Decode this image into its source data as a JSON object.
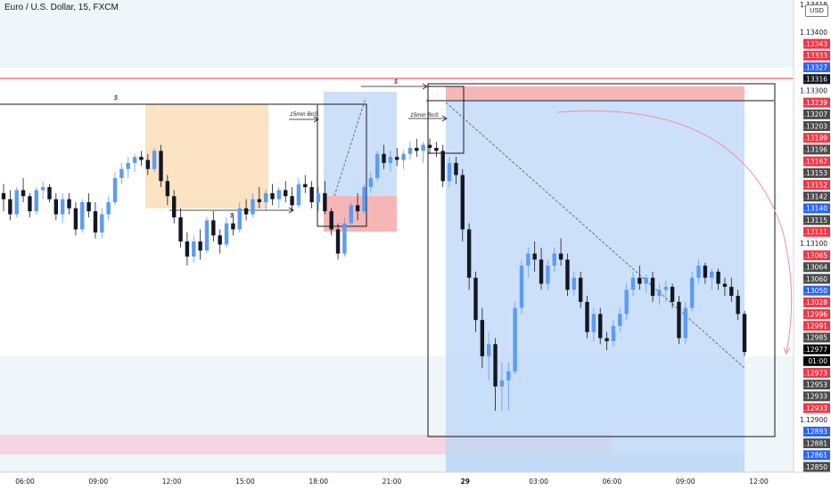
{
  "header": {
    "title": "Euro / U.S. Dollar, 15, FXCM",
    "currency_button": "USD",
    "top_corner_price": "1.13418"
  },
  "price_axis": {
    "labels": [
      {
        "text": "1.13400",
        "bg": "none"
      },
      {
        "text": "1.13343",
        "bg": "#f23645"
      },
      {
        "text": "1.13333",
        "bg": "#f23645"
      },
      {
        "text": "1.13327",
        "bg": "#2962ff"
      },
      {
        "text": "1.13316",
        "bg": "#131722"
      },
      {
        "text": "1.13300",
        "bg": "none"
      },
      {
        "text": "1.13239",
        "bg": "#f23645"
      },
      {
        "text": "1.13207",
        "bg": "#4a4a4a"
      },
      {
        "text": "1.13203",
        "bg": "#4a4a4a"
      },
      {
        "text": "1.13199",
        "bg": "#f23645"
      },
      {
        "text": "1.13196",
        "bg": "#4a4a4a"
      },
      {
        "text": "1.13167",
        "bg": "#f23645"
      },
      {
        "text": "1.13153",
        "bg": "#4a4a4a"
      },
      {
        "text": "1.13152",
        "bg": "#f23645"
      },
      {
        "text": "1.13142",
        "bg": "#4a4a4a"
      },
      {
        "text": "1.13140",
        "bg": "#2962ff"
      },
      {
        "text": "1.13115",
        "bg": "#4a4a4a"
      },
      {
        "text": "1.13111",
        "bg": "#f23645"
      },
      {
        "text": "1.13100",
        "bg": "none"
      },
      {
        "text": "1.13065",
        "bg": "#f23645"
      },
      {
        "text": "1.13064",
        "bg": "#4a4a4a"
      },
      {
        "text": "1.13060",
        "bg": "#4a4a4a"
      },
      {
        "text": "1.13050",
        "bg": "#2962ff"
      },
      {
        "text": "1.13028",
        "bg": "#f23645"
      },
      {
        "text": "1.12996",
        "bg": "#f23645"
      },
      {
        "text": "1.12991",
        "bg": "#f23645"
      },
      {
        "text": "1.12985",
        "bg": "#4a4a4a"
      },
      {
        "text": "1.12977",
        "bg": "#000000"
      },
      {
        "text": "01:00",
        "bg": "#000000"
      },
      {
        "text": "1.12973",
        "bg": "#f23645"
      },
      {
        "text": "1.12953",
        "bg": "#4a4a4a"
      },
      {
        "text": "1.12933",
        "bg": "#4a4a4a"
      },
      {
        "text": "1.12933",
        "bg": "#f23645"
      },
      {
        "text": "1.12900",
        "bg": "none"
      },
      {
        "text": "1.12893",
        "bg": "#2962ff"
      },
      {
        "text": "1.12881",
        "bg": "#4a4a4a"
      },
      {
        "text": "1.12861",
        "bg": "#2962ff"
      },
      {
        "text": "1.12850",
        "bg": "#4a4a4a"
      }
    ]
  },
  "time_axis": {
    "labels": [
      "06:00",
      "09:00",
      "12:00",
      "15:00",
      "18:00",
      "21:00",
      "29",
      "03:00",
      "06:00",
      "09:00",
      "12:00"
    ]
  },
  "annotations": {
    "bos_left": "15min BoS",
    "bos_right": "15min BoS",
    "dollar": "$"
  },
  "colors": {
    "up": "#5b9cf6",
    "down": "#131722",
    "red_line": "#f23645",
    "orange_zone": "#fbe3c3",
    "blue_zone": "#bcd6f7",
    "red_zone": "#f7b6b6",
    "pink_zone": "#f6d5e0"
  },
  "chart_data": {
    "type": "candlestick",
    "symbol": "Euro / U.S. Dollar",
    "interval": "15",
    "x_ticks": [
      "06:00",
      "09:00",
      "12:00",
      "15:00",
      "18:00",
      "21:00",
      "29",
      "03:00",
      "06:00",
      "09:00",
      "12:00"
    ],
    "ylim": [
      1.1284,
      1.1343
    ],
    "candles": [
      [
        1.1324,
        1.13255,
        1.1321,
        1.1323
      ],
      [
        1.1323,
        1.13245,
        1.13195,
        1.13205
      ],
      [
        1.13205,
        1.1325,
        1.132,
        1.13245
      ],
      [
        1.13245,
        1.13265,
        1.13225,
        1.13235
      ],
      [
        1.13235,
        1.1324,
        1.132,
        1.1321
      ],
      [
        1.1321,
        1.1325,
        1.13205,
        1.13245
      ],
      [
        1.13245,
        1.1326,
        1.1323,
        1.1325
      ],
      [
        1.1325,
        1.13255,
        1.13225,
        1.1323
      ],
      [
        1.1323,
        1.1324,
        1.13195,
        1.13205
      ],
      [
        1.13205,
        1.1324,
        1.1319,
        1.1323
      ],
      [
        1.1323,
        1.1324,
        1.13205,
        1.13215
      ],
      [
        1.13215,
        1.13225,
        1.1317,
        1.1318
      ],
      [
        1.1318,
        1.1323,
        1.13175,
        1.13225
      ],
      [
        1.13225,
        1.1324,
        1.132,
        1.1321
      ],
      [
        1.1321,
        1.13225,
        1.13165,
        1.13175
      ],
      [
        1.13175,
        1.13215,
        1.13165,
        1.13205
      ],
      [
        1.13205,
        1.13235,
        1.13195,
        1.13225
      ],
      [
        1.13225,
        1.13275,
        1.1322,
        1.13265
      ],
      [
        1.13265,
        1.1329,
        1.13255,
        1.1328
      ],
      [
        1.1328,
        1.133,
        1.13265,
        1.1329
      ],
      [
        1.1329,
        1.13305,
        1.13275,
        1.133
      ],
      [
        1.133,
        1.1331,
        1.13285,
        1.13295
      ],
      [
        1.13295,
        1.13305,
        1.1327,
        1.1328
      ],
      [
        1.1328,
        1.13315,
        1.13275,
        1.1331
      ],
      [
        1.1331,
        1.1332,
        1.1325,
        1.1326
      ],
      [
        1.1326,
        1.1327,
        1.1322,
        1.13235
      ],
      [
        1.13235,
        1.13245,
        1.1319,
        1.132
      ],
      [
        1.132,
        1.13215,
        1.1315,
        1.1316
      ],
      [
        1.1316,
        1.13175,
        1.1312,
        1.13135
      ],
      [
        1.13135,
        1.1317,
        1.13125,
        1.1316
      ],
      [
        1.1316,
        1.1318,
        1.1313,
        1.13145
      ],
      [
        1.13145,
        1.132,
        1.1314,
        1.13195
      ],
      [
        1.13195,
        1.1321,
        1.1316,
        1.1317
      ],
      [
        1.1317,
        1.1318,
        1.1314,
        1.13155
      ],
      [
        1.13155,
        1.132,
        1.1315,
        1.1319
      ],
      [
        1.1319,
        1.13205,
        1.1317,
        1.1318
      ],
      [
        1.1318,
        1.13225,
        1.13175,
        1.13215
      ],
      [
        1.13215,
        1.1323,
        1.13195,
        1.13205
      ],
      [
        1.13205,
        1.1324,
        1.132,
        1.1323
      ],
      [
        1.1323,
        1.1325,
        1.13215,
        1.13225
      ],
      [
        1.13225,
        1.13245,
        1.1321,
        1.1324
      ],
      [
        1.1324,
        1.13255,
        1.1322,
        1.1323
      ],
      [
        1.1323,
        1.1325,
        1.13215,
        1.13245
      ],
      [
        1.13245,
        1.1326,
        1.13225,
        1.13235
      ],
      [
        1.13235,
        1.1325,
        1.1321,
        1.1322
      ],
      [
        1.1322,
        1.13265,
        1.13215,
        1.13255
      ],
      [
        1.13255,
        1.1327,
        1.1324,
        1.1325
      ],
      [
        1.1325,
        1.1326,
        1.13215,
        1.13225
      ],
      [
        1.13225,
        1.1325,
        1.1321,
        1.1324
      ],
      [
        1.1324,
        1.1326,
        1.13205,
        1.1321
      ],
      [
        1.1321,
        1.13215,
        1.1317,
        1.1318
      ],
      [
        1.1318,
        1.1319,
        1.1313,
        1.1314
      ],
      [
        1.1314,
        1.132,
        1.13135,
        1.1319
      ],
      [
        1.1319,
        1.13225,
        1.13185,
        1.1322
      ],
      [
        1.1322,
        1.1324,
        1.13195,
        1.1321
      ],
      [
        1.1321,
        1.13255,
        1.13205,
        1.1325
      ],
      [
        1.1325,
        1.13275,
        1.1324,
        1.13265
      ],
      [
        1.13265,
        1.1331,
        1.1326,
        1.13305
      ],
      [
        1.13305,
        1.1332,
        1.1328,
        1.1329
      ],
      [
        1.1329,
        1.1331,
        1.13275,
        1.133
      ],
      [
        1.133,
        1.13315,
        1.13285,
        1.13295
      ],
      [
        1.13295,
        1.1331,
        1.1328,
        1.13305
      ],
      [
        1.13305,
        1.13325,
        1.13295,
        1.13315
      ],
      [
        1.13315,
        1.1333,
        1.133,
        1.1331
      ],
      [
        1.1331,
        1.13325,
        1.1329,
        1.1332
      ],
      [
        1.1332,
        1.1333,
        1.13305,
        1.13315
      ],
      [
        1.13315,
        1.13325,
        1.133,
        1.1331
      ],
      [
        1.1331,
        1.1332,
        1.1325,
        1.1326
      ],
      [
        1.1326,
        1.133,
        1.1325,
        1.1329
      ],
      [
        1.1329,
        1.133,
        1.13255,
        1.1327
      ],
      [
        1.1327,
        1.1328,
        1.1316,
        1.1318
      ],
      [
        1.1318,
        1.1319,
        1.1308,
        1.131
      ],
      [
        1.131,
        1.1311,
        1.1301,
        1.1303
      ],
      [
        1.1303,
        1.1305,
        1.1295,
        1.1297
      ],
      [
        1.1297,
        1.1301,
        1.1293,
        1.1299
      ],
      [
        1.1299,
        1.13,
        1.1288,
        1.1292
      ],
      [
        1.1292,
        1.1296,
        1.1288,
        1.1293
      ],
      [
        1.1293,
        1.1296,
        1.1288,
        1.12945
      ],
      [
        1.12945,
        1.1306,
        1.1294,
        1.1305
      ],
      [
        1.1305,
        1.1313,
        1.1304,
        1.1312
      ],
      [
        1.1312,
        1.1315,
        1.131,
        1.1314
      ],
      [
        1.1314,
        1.1316,
        1.1311,
        1.1313
      ],
      [
        1.1313,
        1.1315,
        1.1308,
        1.1309
      ],
      [
        1.1309,
        1.1313,
        1.1308,
        1.1312
      ],
      [
        1.1312,
        1.1315,
        1.1311,
        1.1314
      ],
      [
        1.1314,
        1.13165,
        1.1312,
        1.1313
      ],
      [
        1.1313,
        1.1314,
        1.1307,
        1.1308
      ],
      [
        1.1308,
        1.1311,
        1.1307,
        1.131
      ],
      [
        1.131,
        1.1311,
        1.1305,
        1.1306
      ],
      [
        1.1306,
        1.1307,
        1.13,
        1.1301
      ],
      [
        1.1301,
        1.1305,
        1.12995,
        1.1304
      ],
      [
        1.1304,
        1.1305,
        1.1299,
        1.13
      ],
      [
        1.13,
        1.1301,
        1.1298,
        1.12995
      ],
      [
        1.12995,
        1.1303,
        1.12985,
        1.1302
      ],
      [
        1.1302,
        1.1305,
        1.1301,
        1.1304
      ],
      [
        1.1304,
        1.1309,
        1.1303,
        1.1308
      ],
      [
        1.1308,
        1.1311,
        1.1307,
        1.131
      ],
      [
        1.131,
        1.1312,
        1.1308,
        1.1309
      ],
      [
        1.1309,
        1.13105,
        1.13075,
        1.131
      ],
      [
        1.131,
        1.1311,
        1.1306,
        1.1307
      ],
      [
        1.1307,
        1.1309,
        1.13055,
        1.1308
      ],
      [
        1.1308,
        1.13095,
        1.1306,
        1.13085
      ],
      [
        1.13085,
        1.1309,
        1.1305,
        1.1306
      ],
      [
        1.1306,
        1.1307,
        1.1299,
        1.13
      ],
      [
        1.13,
        1.1306,
        1.1299,
        1.1305
      ],
      [
        1.1305,
        1.1311,
        1.13045,
        1.131
      ],
      [
        1.131,
        1.1313,
        1.1309,
        1.1312
      ],
      [
        1.1312,
        1.13125,
        1.1309,
        1.131
      ],
      [
        1.131,
        1.13115,
        1.1308,
        1.1311
      ],
      [
        1.1311,
        1.13115,
        1.1308,
        1.1309
      ],
      [
        1.1309,
        1.131,
        1.1307,
        1.13085
      ],
      [
        1.13085,
        1.131,
        1.1306,
        1.1307
      ],
      [
        1.1307,
        1.1308,
        1.1303,
        1.1304
      ],
      [
        1.1304,
        1.13045,
        1.1297,
        1.12977
      ]
    ]
  }
}
